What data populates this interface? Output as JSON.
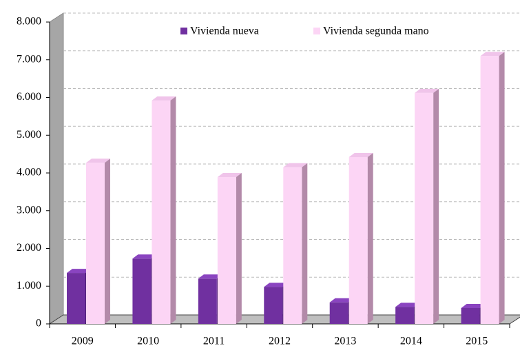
{
  "chart_data": {
    "type": "bar3d",
    "categories": [
      "2009",
      "2010",
      "2011",
      "2012",
      "2013",
      "2014",
      "2015"
    ],
    "series": [
      {
        "name": "Vivienda nueva",
        "color": "#7030a0",
        "values": [
          1350,
          1730,
          1200,
          980,
          570,
          450,
          420
        ]
      },
      {
        "name": "Vivienda segunda mano",
        "color": "#fcd5f5",
        "values": [
          4270,
          5920,
          3890,
          4150,
          4420,
          6120,
          7100
        ]
      }
    ],
    "ylim": [
      0,
      8000
    ],
    "yticks": [
      0,
      {
        "value": 1000,
        "label": "1.000"
      },
      {
        "value": 2000,
        "label": "2.000"
      },
      {
        "value": 3000,
        "label": "3.000"
      },
      {
        "value": 4000,
        "label": "4.000"
      },
      {
        "value": 5000,
        "label": "5.000"
      },
      {
        "value": 6000,
        "label": "6.000"
      },
      {
        "value": 7000,
        "label": "7.000"
      },
      {
        "value": 8000,
        "label": "8.000"
      }
    ],
    "grid": true,
    "legend": "top"
  }
}
